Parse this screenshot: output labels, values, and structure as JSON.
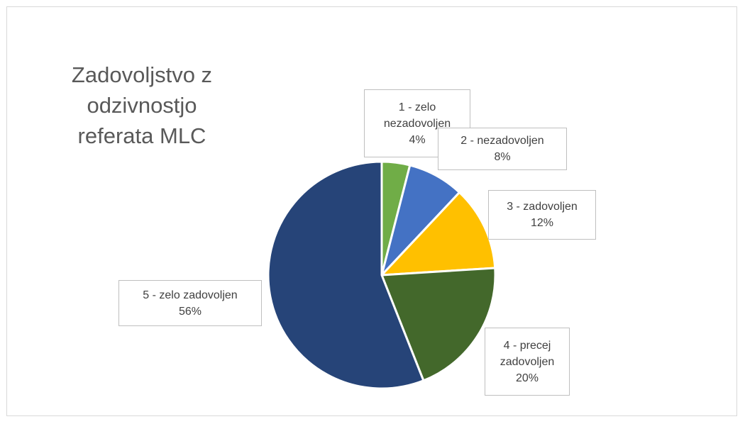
{
  "chart_data": {
    "type": "pie",
    "title": "Zadovoljstvo z odzivnostjo referata MLC",
    "categories": [
      "1 - zelo nezadovoljen",
      "2 - nezadovoljen",
      "3 - zadovoljen",
      "4 - precej zadovoljen",
      "5 - zelo zadovoljen"
    ],
    "values": [
      4,
      8,
      12,
      20,
      56
    ],
    "value_labels": [
      "4%",
      "8%",
      "12%",
      "20%",
      "56%"
    ],
    "colors": [
      "#70ad47",
      "#4472c4",
      "#ffc000",
      "#43682b",
      "#264478"
    ]
  }
}
